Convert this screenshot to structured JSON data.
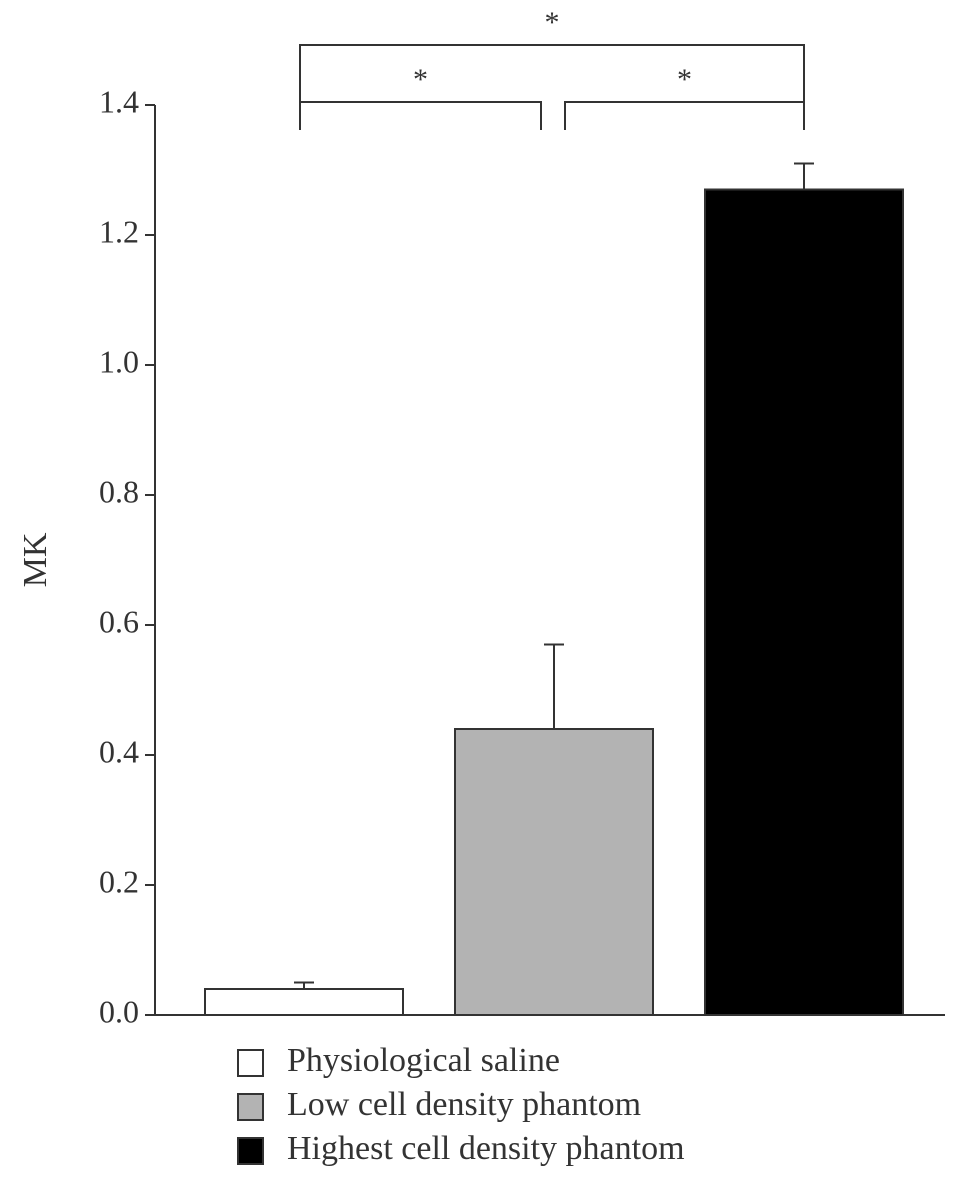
{
  "chart_data": {
    "type": "bar",
    "y_label": "MK",
    "series": [
      {
        "name": "Physiological saline",
        "color": "#ffffff",
        "values": [
          0.04
        ],
        "errors": [
          0.01
        ]
      },
      {
        "name": "Low cell density phantom",
        "color": "#b3b3b3",
        "values": [
          0.44
        ],
        "errors": [
          0.13
        ]
      },
      {
        "name": "Highest cell density phantom",
        "color": "#000000",
        "values": [
          1.27
        ],
        "errors": [
          0.04
        ]
      }
    ],
    "ylim": [
      0,
      1.4
    ],
    "yticks": [
      {
        "value": 0,
        "label": "0.0"
      },
      0.2,
      0.4,
      0.6,
      0.8,
      {
        "value": 1,
        "label": "1.0"
      },
      1.2,
      1.4
    ],
    "significance": [
      {
        "from": 0,
        "to": 2,
        "label": "*"
      },
      {
        "from": 0,
        "to": 1,
        "label": "*"
      },
      {
        "from": 1,
        "to": 2,
        "label": "*"
      }
    ]
  }
}
